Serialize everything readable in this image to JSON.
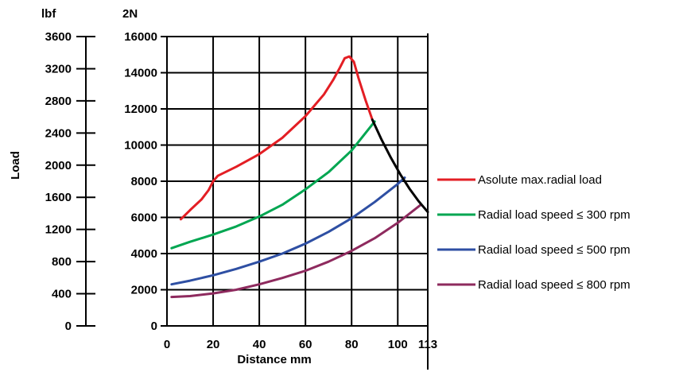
{
  "chart_data": {
    "type": "line",
    "title": "",
    "xlabel": "Distance mm",
    "ylabel": "Load",
    "left_axis_unit": "lbf",
    "right_axis_unit": "2N",
    "x_ticks": [
      "0",
      "20",
      "40",
      "60",
      "80",
      "100",
      "113"
    ],
    "xlim": [
      0,
      113
    ],
    "ylim_lbf": [
      0,
      3600
    ],
    "ylim_2N": [
      0,
      16000
    ],
    "lbf_ticks": [
      "0",
      "400",
      "800",
      "1200",
      "1600",
      "2000",
      "2400",
      "2800",
      "3200",
      "3600"
    ],
    "n_ticks": [
      "0",
      "2000",
      "4000",
      "6000",
      "8000",
      "10000",
      "12000",
      "14000",
      "16000"
    ],
    "grid": true,
    "legend_position": "right",
    "series": [
      {
        "name": "Asolute max.radial load",
        "color": "#e31e24",
        "x": [
          6,
          10,
          15,
          18,
          20,
          22,
          30,
          40,
          50,
          60,
          68,
          72,
          75,
          77,
          79,
          81,
          83,
          86,
          89
        ],
        "y": [
          5900,
          6400,
          7000,
          7500,
          8000,
          8300,
          8800,
          9500,
          10400,
          11600,
          12800,
          13600,
          14300,
          14800,
          14900,
          14600,
          13700,
          12500,
          11400
        ]
      },
      {
        "name": "Radial load speed ≤ 300 rpm",
        "color": "#00a651",
        "x": [
          2,
          10,
          20,
          30,
          40,
          50,
          60,
          70,
          80,
          90
        ],
        "y": [
          4300,
          4650,
          5050,
          5500,
          6050,
          6700,
          7550,
          8500,
          9700,
          11300
        ]
      },
      {
        "name": "Radial load speed ≤ 500 rpm",
        "color": "#2e4fa3",
        "x": [
          2,
          10,
          20,
          30,
          40,
          50,
          60,
          70,
          80,
          90,
          100,
          103
        ],
        "y": [
          2300,
          2500,
          2800,
          3150,
          3550,
          4000,
          4550,
          5200,
          5950,
          6850,
          7850,
          8200
        ]
      },
      {
        "name": "Radial load speed ≤ 800 rpm",
        "color": "#8e2a5e",
        "x": [
          2,
          10,
          20,
          30,
          40,
          50,
          60,
          70,
          80,
          90,
          100,
          110
        ],
        "y": [
          1600,
          1650,
          1800,
          2000,
          2300,
          2650,
          3050,
          3550,
          4150,
          4850,
          5700,
          6700
        ]
      },
      {
        "color": "#000000",
        "x": [
          89,
          93,
          97,
          101,
          105,
          109,
          113
        ],
        "y": [
          11400,
          10300,
          9300,
          8400,
          7600,
          6900,
          6300
        ]
      }
    ]
  }
}
